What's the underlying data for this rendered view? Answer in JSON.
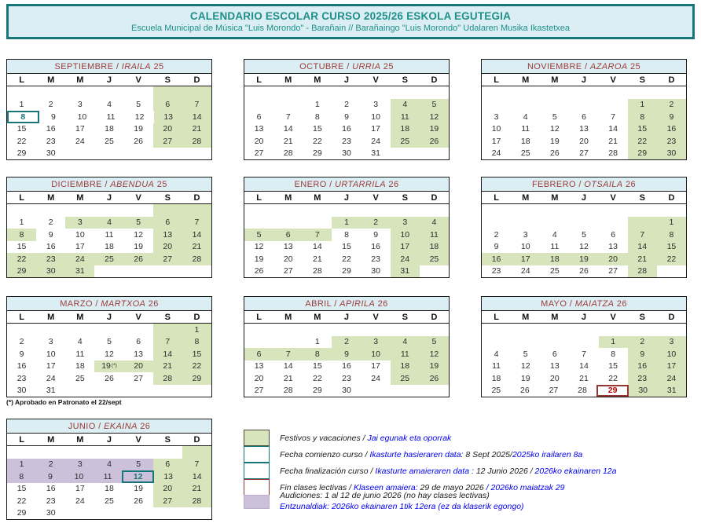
{
  "header": {
    "title": "CALENDARIO ESCOLAR CURSO 2025/26 ESKOLA EGUTEGIA",
    "subtitle": "Escuela Municipal de Música \"Luis Morondo\" - Barañain // Barañaingo \"Luis Morondo\" Udalaren Musika Ikastetxea"
  },
  "day_headers": [
    "L",
    "M",
    "M",
    "J",
    "V",
    "S",
    "D"
  ],
  "day_note_marker": "(*)",
  "footnote": "(*) Aprobado en Patronato el 22/sept",
  "colors": {
    "band_bg": "#daeef3",
    "teal": "#1f8f8a",
    "teal_border": "#17767a",
    "month_title": "#9e3b38",
    "green": "#d7e4bc",
    "purple": "#ccc0da",
    "red_border": "#963634",
    "red_text": "#c00000",
    "blue_text": "#0000ee"
  },
  "legend_flags": {
    "g": "festivo-vacaciones (green)",
    "p": "audiciones (purple)",
    "T": "boxed teal = comienzo/fin de curso",
    "R": "boxed red = fin clases lectivas",
    "n": "footnote marker"
  },
  "months": [
    {
      "slug": "september",
      "name_es": "SEPTIEMBRE",
      "name_eu": "IRAILA",
      "yy": "25",
      "weeks": [
        [
          "",
          "",
          "",
          "",
          "",
          "g:",
          "g:"
        ],
        [
          "1",
          "2",
          "3",
          "4",
          "5",
          "g:6",
          "g:7"
        ],
        [
          "T:8",
          "9",
          "10",
          "11",
          "12",
          "g:13",
          "g:14"
        ],
        [
          "15",
          "16",
          "17",
          "18",
          "19",
          "g:20",
          "g:21"
        ],
        [
          "22",
          "23",
          "24",
          "25",
          "26",
          "g:27",
          "g:28"
        ],
        [
          "29",
          "30",
          "",
          "",
          "",
          "",
          ""
        ]
      ]
    },
    {
      "slug": "october",
      "name_es": "OCTUBRE",
      "name_eu": "URRIA",
      "yy": "25",
      "weeks": [
        [
          "",
          "",
          "",
          "",
          "",
          "",
          ""
        ],
        [
          "",
          "",
          "1",
          "2",
          "3",
          "g:4",
          "g:5"
        ],
        [
          "6",
          "7",
          "8",
          "9",
          "10",
          "g:11",
          "g:12"
        ],
        [
          "13",
          "14",
          "15",
          "16",
          "17",
          "g:18",
          "g:19"
        ],
        [
          "20",
          "21",
          "22",
          "23",
          "24",
          "g:25",
          "g:26"
        ],
        [
          "27",
          "28",
          "29",
          "30",
          "31",
          "",
          ""
        ]
      ]
    },
    {
      "slug": "november",
      "name_es": "NOVIEMBRE",
      "name_eu": "AZAROA",
      "yy": "25",
      "weeks": [
        [
          "",
          "",
          "",
          "",
          "",
          "",
          ""
        ],
        [
          "",
          "",
          "",
          "",
          "",
          "g:1",
          "g:2"
        ],
        [
          "3",
          "4",
          "5",
          "6",
          "7",
          "g:8",
          "g:9"
        ],
        [
          "10",
          "11",
          "12",
          "13",
          "14",
          "g:15",
          "g:16"
        ],
        [
          "17",
          "18",
          "19",
          "20",
          "21",
          "g:22",
          "g:23"
        ],
        [
          "24",
          "25",
          "26",
          "27",
          "28",
          "g:29",
          "g:30"
        ]
      ]
    },
    {
      "slug": "december",
      "name_es": "DICIEMBRE",
      "name_eu": "ABENDUA",
      "yy": "25",
      "weeks": [
        [
          "",
          "",
          "",
          "",
          "",
          "g:",
          "g:"
        ],
        [
          "1",
          "2",
          "g:3",
          "g:4",
          "g:5",
          "g:6",
          "g:7"
        ],
        [
          "g:8",
          "9",
          "10",
          "11",
          "12",
          "g:13",
          "g:14"
        ],
        [
          "15",
          "16",
          "17",
          "18",
          "19",
          "g:20",
          "g:21"
        ],
        [
          "g:22",
          "g:23",
          "g:24",
          "g:25",
          "g:26",
          "g:27",
          "g:28"
        ],
        [
          "g:29",
          "g:30",
          "g:31",
          "",
          "",
          "",
          ""
        ]
      ]
    },
    {
      "slug": "january",
      "name_es": "ENERO",
      "name_eu": "URTARRILA",
      "yy": "26",
      "weeks": [
        [
          "",
          "",
          "",
          "",
          "",
          "",
          ""
        ],
        [
          "",
          "",
          "",
          "g:1",
          "g:2",
          "g:3",
          "g:4"
        ],
        [
          "g:5",
          "g:6",
          "g:7",
          "8",
          "9",
          "g:10",
          "g:11"
        ],
        [
          "12",
          "13",
          "14",
          "15",
          "16",
          "g:17",
          "g:18"
        ],
        [
          "19",
          "20",
          "21",
          "22",
          "23",
          "g:24",
          "g:25"
        ],
        [
          "26",
          "27",
          "28",
          "29",
          "30",
          "g:31",
          ""
        ]
      ]
    },
    {
      "slug": "february",
      "name_es": "FEBRERO",
      "name_eu": "OTSAILA",
      "yy": "26",
      "weeks": [
        [
          "",
          "",
          "",
          "",
          "",
          "",
          ""
        ],
        [
          "",
          "",
          "",
          "",
          "",
          "g:",
          "g:1"
        ],
        [
          "2",
          "3",
          "4",
          "5",
          "6",
          "g:7",
          "g:8"
        ],
        [
          "9",
          "10",
          "11",
          "12",
          "13",
          "g:14",
          "g:15"
        ],
        [
          "g:16",
          "g:17",
          "g:18",
          "g:19",
          "g:20",
          "g:21",
          "g:22"
        ],
        [
          "23",
          "24",
          "25",
          "26",
          "27",
          "g:28",
          ""
        ]
      ]
    },
    {
      "slug": "march",
      "name_es": "MARZO",
      "name_eu": "MARTXOA",
      "yy": "26",
      "weeks": [
        [
          "",
          "",
          "",
          "",
          "",
          "g:",
          "g:1"
        ],
        [
          "2",
          "3",
          "4",
          "5",
          "6",
          "g:7",
          "g:8"
        ],
        [
          "9",
          "10",
          "11",
          "12",
          "13",
          "g:14",
          "g:15"
        ],
        [
          "16",
          "17",
          "18",
          "gn:19",
          "g:20",
          "g:21",
          "g:22"
        ],
        [
          "23",
          "24",
          "25",
          "26",
          "27",
          "g:28",
          "g:29"
        ],
        [
          "30",
          "31",
          "",
          "",
          "",
          "",
          ""
        ]
      ]
    },
    {
      "slug": "april",
      "name_es": "ABRIL",
      "name_eu": "APIRILA",
      "yy": "26",
      "weeks": [
        [
          "",
          "",
          "",
          "",
          "",
          "",
          ""
        ],
        [
          "",
          "",
          "1",
          "g:2",
          "g:3",
          "g:4",
          "g:5"
        ],
        [
          "g:6",
          "g:7",
          "g:8",
          "g:9",
          "g:10",
          "g:11",
          "g:12"
        ],
        [
          "13",
          "14",
          "15",
          "16",
          "17",
          "g:18",
          "g:19"
        ],
        [
          "20",
          "21",
          "22",
          "23",
          "24",
          "g:25",
          "g:26"
        ],
        [
          "27",
          "28",
          "29",
          "30",
          "",
          "",
          ""
        ]
      ]
    },
    {
      "slug": "may",
      "name_es": "MAYO",
      "name_eu": "MAIATZA",
      "yy": "26",
      "weeks": [
        [
          "",
          "",
          "",
          "",
          "",
          "",
          ""
        ],
        [
          "",
          "",
          "",
          "",
          "g:1",
          "g:2",
          "g:3"
        ],
        [
          "4",
          "5",
          "6",
          "7",
          "8",
          "g:9",
          "g:10"
        ],
        [
          "11",
          "12",
          "13",
          "14",
          "15",
          "g:16",
          "g:17"
        ],
        [
          "18",
          "19",
          "20",
          "21",
          "22",
          "g:23",
          "g:24"
        ],
        [
          "25",
          "26",
          "27",
          "28",
          "R:29",
          "g:30",
          "g:31"
        ]
      ]
    },
    {
      "slug": "june",
      "name_es": "JUNIO",
      "name_eu": "EKAINA",
      "yy": "26",
      "weeks": [
        [
          "",
          "",
          "",
          "",
          "",
          "",
          "g:"
        ],
        [
          "p:1",
          "p:2",
          "p:3",
          "p:4",
          "p:5",
          "g:6",
          "g:7"
        ],
        [
          "p:8",
          "p:9",
          "p:10",
          "p:11",
          "pT:12",
          "g:13",
          "g:14"
        ],
        [
          "15",
          "16",
          "17",
          "18",
          "19",
          "g:20",
          "g:21"
        ],
        [
          "22",
          "23",
          "24",
          "25",
          "26",
          "g:27",
          "g:28"
        ],
        [
          "29",
          "30",
          "",
          "",
          "",
          "",
          ""
        ]
      ]
    }
  ],
  "legend": [
    {
      "swatch": "green",
      "lines": [
        [
          {
            "t": "Festivos y vacaciones / ",
            "b": 0
          },
          {
            "t": "Jai egunak eta oporrak",
            "b": 1
          }
        ]
      ]
    },
    {
      "swatch": "teal",
      "lines": [
        [
          {
            "t": "Fecha comienzo curso / ",
            "b": 0
          },
          {
            "t": "Ikasturte hasieraren data:  ",
            "b": 1
          },
          {
            "t": "8  Sept 2025/",
            "b": 0
          },
          {
            "t": "2025ko irailaren 8a",
            "b": 1
          }
        ]
      ]
    },
    {
      "swatch": "teal",
      "lines": [
        [
          {
            "t": "Fecha finalización curso /  ",
            "b": 0
          },
          {
            "t": "Ikasturte amaieraren data : ",
            "b": 1
          },
          {
            "t": "12 Junio 2026 / ",
            "b": 0
          },
          {
            "t": "2026ko ekainaren 12a",
            "b": 1
          }
        ]
      ]
    },
    {
      "swatch": "red",
      "lines": [
        [
          {
            "t": "Fin clases lectivas  / ",
            "b": 0
          },
          {
            "t": "Klaseen amaiera:  ",
            "b": 1
          },
          {
            "t": "29 de mayo 2026 ",
            "b": 0
          },
          {
            "t": "/ 2026ko  maiatzak 29",
            "b": 1
          }
        ]
      ]
    },
    {
      "swatch": "purple",
      "lines": [
        [
          {
            "t": "Audiciones: 1 al 12 de junio 2026 (no hay clases lectivas)",
            "b": 0
          }
        ],
        [
          {
            "t": "Entzunaldiak: 2026ko ekainaren 1tik 12era (ez da klaserik egongo)",
            "b": 1
          }
        ]
      ]
    }
  ]
}
